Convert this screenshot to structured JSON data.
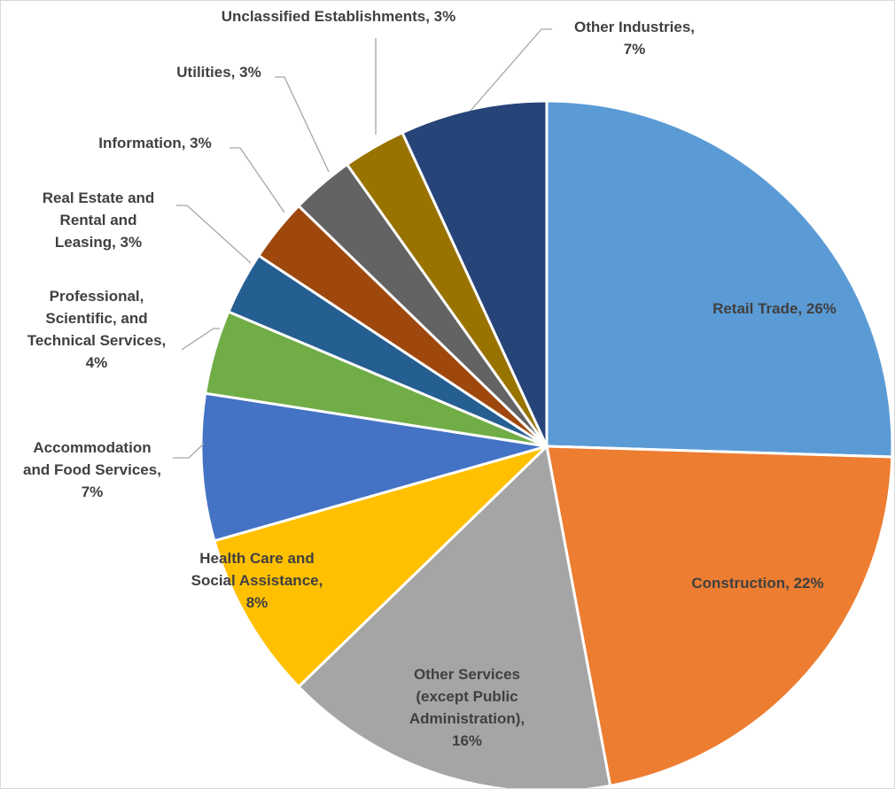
{
  "chart_data": {
    "type": "pie",
    "title": "",
    "slices": [
      {
        "label": "Retail Trade",
        "value": 26,
        "display": "26%",
        "color": "#5B9BD5"
      },
      {
        "label": "Construction",
        "value": 22,
        "display": "22%",
        "color": "#ED7D31"
      },
      {
        "label": "Other Services (except Public Administration)",
        "value": 16,
        "display": "16%",
        "color": "#A5A5A5"
      },
      {
        "label": "Health Care and Social Assistance",
        "value": 8,
        "display": "8%",
        "color": "#FFC000"
      },
      {
        "label": "Accommodation and Food Services",
        "value": 7,
        "display": "7%",
        "color": "#4472C4"
      },
      {
        "label": "Professional, Scientific, and Technical Services",
        "value": 4,
        "display": "4%",
        "color": "#70AD47"
      },
      {
        "label": "Real Estate and Rental and Leasing",
        "value": 3,
        "display": "3%",
        "color": "#255E91"
      },
      {
        "label": "Information",
        "value": 3,
        "display": "3%",
        "color": "#9E480E"
      },
      {
        "label": "Utilities",
        "value": 3,
        "display": "3%",
        "color": "#636363"
      },
      {
        "label": "Unclassified Establishments",
        "value": 3,
        "display": "3%",
        "color": "#997300"
      },
      {
        "label": "Other Industries",
        "value": 7,
        "display": "7%",
        "color": "#264478"
      }
    ]
  }
}
